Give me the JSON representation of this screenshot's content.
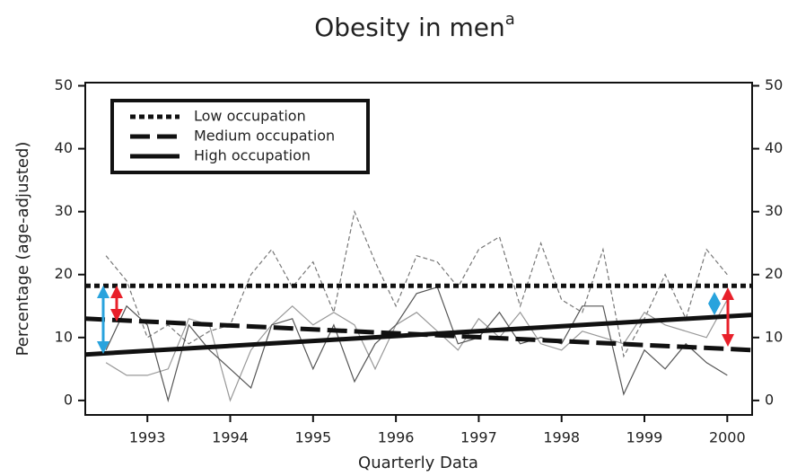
{
  "chart_data": {
    "type": "line",
    "title": "Obesity in men",
    "title_note": "a",
    "x_label": "Quarterly Data",
    "y_label": "Percentage (age-adjusted)",
    "xlim": [
      1992.25,
      2000.3
    ],
    "xticks": [
      1993,
      1994,
      1995,
      1996,
      1997,
      1998,
      1999,
      2000
    ],
    "ylim": [
      -2.3,
      50.5
    ],
    "yticks": [
      0,
      10,
      20,
      30,
      40,
      50
    ],
    "y2lim": [
      -2.3,
      50.5
    ],
    "y2ticks": [
      0,
      10,
      20,
      30,
      40,
      50
    ],
    "x": [
      1992.5,
      1992.75,
      1993,
      1993.25,
      1993.5,
      1993.75,
      1994,
      1994.25,
      1994.5,
      1994.75,
      1995,
      1995.25,
      1995.5,
      1995.75,
      1996,
      1996.25,
      1996.5,
      1996.75,
      1997,
      1997.25,
      1997.5,
      1997.75,
      1998,
      1998.25,
      1998.5,
      1998.75,
      1999,
      1999.25,
      1999.5,
      1999.75,
      2000
    ],
    "raw_series": [
      {
        "color": "#777777",
        "dash": "dashed",
        "values": [
          23,
          19,
          10,
          12,
          9,
          11,
          12,
          20,
          24,
          18,
          22,
          14,
          30,
          22,
          15,
          23,
          22,
          18,
          24,
          26,
          15,
          25,
          16,
          14,
          24,
          7,
          13,
          20,
          13,
          24,
          20
        ]
      },
      {
        "color": "#999999",
        "dash": "solid",
        "values": [
          6,
          4,
          4,
          5,
          13,
          12,
          0,
          8,
          12,
          15,
          12,
          14,
          12,
          5,
          12,
          14,
          11,
          8,
          13,
          10,
          14,
          9,
          8,
          11,
          10,
          9,
          14,
          12,
          11,
          10,
          16
        ]
      },
      {
        "color": "#555555",
        "dash": "solid",
        "values": [
          8,
          15,
          12,
          0,
          12,
          8,
          5,
          2,
          12,
          13,
          5,
          12,
          3,
          9,
          12,
          17,
          18,
          9,
          10,
          14,
          9,
          10,
          9,
          15,
          15,
          1,
          8,
          5,
          9,
          6,
          4
        ]
      }
    ],
    "series": [
      {
        "name": "Low occupation",
        "color": "#111111",
        "dash": "dotted",
        "x": [
          1992.25,
          2000.3
        ],
        "values": [
          18.2,
          18.2
        ]
      },
      {
        "name": "Medium occupation",
        "color": "#111111",
        "dash": "dashed",
        "x": [
          1992.25,
          2000.3
        ],
        "values": [
          13.0,
          8.0
        ]
      },
      {
        "name": "High occupation",
        "color": "#111111",
        "dash": "solid",
        "x": [
          1992.25,
          2000.3
        ],
        "values": [
          7.3,
          13.6
        ]
      }
    ]
  }
}
